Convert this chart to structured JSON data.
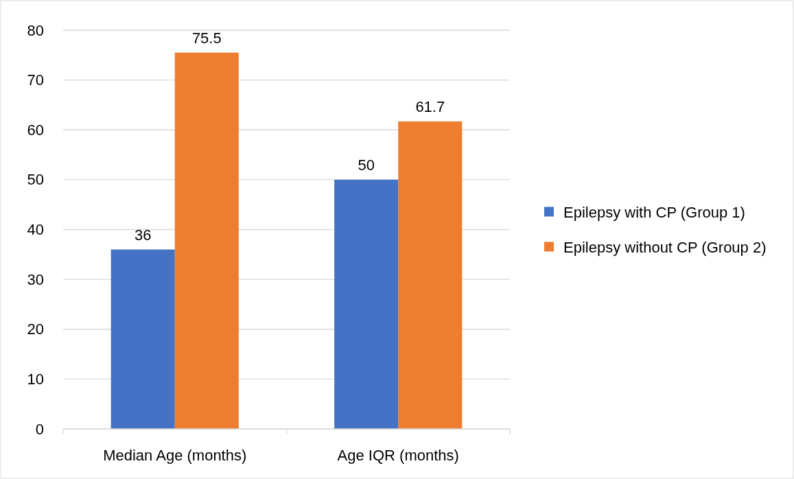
{
  "chart_data": {
    "type": "bar",
    "categories": [
      "Median Age (months)",
      "Age IQR (months)"
    ],
    "series": [
      {
        "name": "Epilepsy with CP (Group 1)",
        "color": "#4472c4",
        "values": [
          36,
          50
        ]
      },
      {
        "name": "Epilepsy without CP (Group 2)",
        "color": "#ed7d31",
        "values": [
          75.5,
          61.7
        ]
      }
    ],
    "ylim": [
      0,
      80
    ],
    "yticks": [
      0,
      10,
      20,
      30,
      40,
      50,
      60,
      70,
      80
    ],
    "grid": "y",
    "legend": "right",
    "data_labels": true
  }
}
